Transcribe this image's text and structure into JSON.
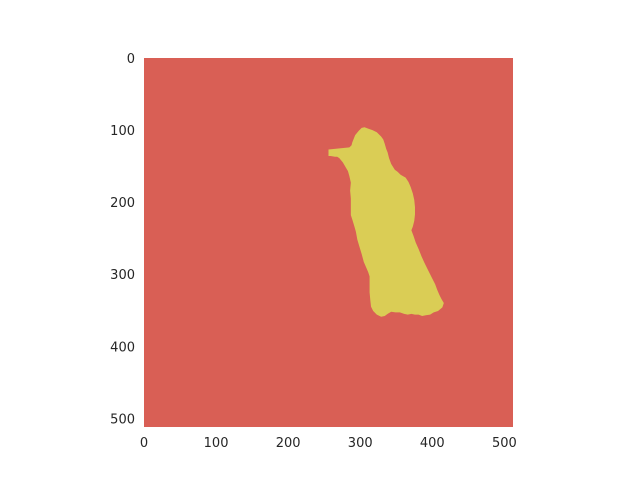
{
  "chart_data": {
    "type": "heatmap",
    "title": "",
    "xlabel": "",
    "ylabel": "",
    "xlim": [
      0,
      512
    ],
    "ylim": [
      512,
      0
    ],
    "grid": false,
    "x_ticks": [
      0,
      100,
      200,
      300,
      400,
      500
    ],
    "y_ticks": [
      0,
      100,
      200,
      300,
      400,
      500
    ],
    "colors": {
      "background_class": "#d95f55",
      "foreground_class": "#dacd55"
    },
    "mask_outline_image_coords": [
      [
        256,
        127
      ],
      [
        285,
        124
      ],
      [
        288,
        121
      ],
      [
        289,
        117
      ],
      [
        293,
        107
      ],
      [
        298,
        101
      ],
      [
        302,
        97
      ],
      [
        306,
        96
      ],
      [
        311,
        98
      ],
      [
        317,
        100
      ],
      [
        323,
        103
      ],
      [
        329,
        109
      ],
      [
        332,
        113
      ],
      [
        334,
        119
      ],
      [
        336,
        126
      ],
      [
        338,
        131
      ],
      [
        340,
        139
      ],
      [
        343,
        147
      ],
      [
        348,
        155
      ],
      [
        352,
        158
      ],
      [
        356,
        162
      ],
      [
        363,
        166
      ],
      [
        367,
        172
      ],
      [
        370,
        179
      ],
      [
        373,
        188
      ],
      [
        375,
        197
      ],
      [
        376,
        207
      ],
      [
        376,
        217
      ],
      [
        375,
        226
      ],
      [
        373,
        234
      ],
      [
        371,
        239
      ],
      [
        374,
        247
      ],
      [
        377,
        256
      ],
      [
        381,
        265
      ],
      [
        385,
        275
      ],
      [
        389,
        284
      ],
      [
        393,
        292
      ],
      [
        397,
        300
      ],
      [
        401,
        308
      ],
      [
        404,
        314
      ],
      [
        407,
        322
      ],
      [
        410,
        329
      ],
      [
        413,
        335
      ],
      [
        416,
        340
      ],
      [
        414,
        346
      ],
      [
        408,
        351
      ],
      [
        402,
        353
      ],
      [
        397,
        356
      ],
      [
        391,
        357
      ],
      [
        386,
        358
      ],
      [
        381,
        356
      ],
      [
        376,
        356
      ],
      [
        371,
        355
      ],
      [
        366,
        356
      ],
      [
        361,
        355
      ],
      [
        355,
        353
      ],
      [
        349,
        353
      ],
      [
        343,
        352
      ],
      [
        338,
        355
      ],
      [
        334,
        358
      ],
      [
        329,
        359
      ],
      [
        323,
        356
      ],
      [
        318,
        351
      ],
      [
        315,
        345
      ],
      [
        314,
        336
      ],
      [
        313,
        325
      ],
      [
        313,
        314
      ],
      [
        313,
        303
      ],
      [
        311,
        297
      ],
      [
        308,
        290
      ],
      [
        305,
        283
      ],
      [
        302,
        272
      ],
      [
        299,
        262
      ],
      [
        296,
        252
      ],
      [
        294,
        241
      ],
      [
        292,
        234
      ],
      [
        289,
        224
      ],
      [
        287,
        218
      ],
      [
        287,
        206
      ],
      [
        287,
        195
      ],
      [
        286,
        184
      ],
      [
        287,
        173
      ],
      [
        285,
        164
      ],
      [
        283,
        157
      ],
      [
        280,
        152
      ],
      [
        276,
        145
      ],
      [
        271,
        139
      ],
      [
        268,
        137
      ],
      [
        265,
        137
      ],
      [
        259,
        136
      ],
      [
        256,
        136
      ]
    ]
  }
}
